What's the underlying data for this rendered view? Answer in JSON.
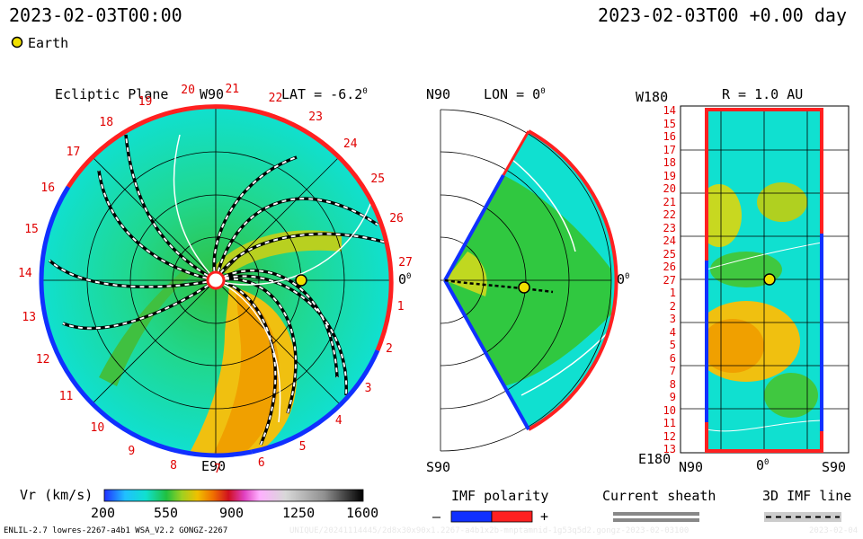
{
  "header": {
    "datetime_left": "2023-02-03T00:00",
    "datetime_right": "2023-02-03T00 +0.00 day",
    "earth_legend": "Earth"
  },
  "colors": {
    "earth": "#f0e000",
    "panel_red": "#ff2020",
    "panel_blue": "#1030ff",
    "label_red": "#e00000",
    "slow_wind": "#00d8e0",
    "fast_wind": "#f0a000"
  },
  "chart_data": [
    {
      "type": "polar",
      "title": "Ecliptic Plane",
      "lat_label": "LAT = -6.2",
      "degree_mark": "0",
      "direction_labels": {
        "top": "W90",
        "bottom": "E90",
        "right": "0"
      },
      "carrington_rotation_labels": [
        "19",
        "20",
        "21",
        "22",
        "23",
        "24",
        "25",
        "26",
        "27",
        "1",
        "2",
        "3",
        "4",
        "5",
        "6",
        "7",
        "8",
        "9",
        "10",
        "11",
        "12",
        "13",
        "14",
        "15",
        "16",
        "17",
        "18"
      ],
      "earth_angle_deg": 0
    },
    {
      "type": "meridional",
      "title": "LON = 0",
      "degree_mark": "0",
      "labels": {
        "top": "N90",
        "bottom": "S90",
        "right": "0"
      }
    },
    {
      "type": "heatmap",
      "title": "R = 1.0 AU",
      "y_top_label": "W180",
      "y_bottom_label": "E180",
      "x_labels": [
        "N90",
        "0",
        "S90"
      ],
      "degree_mark": "0",
      "y_tick_labels": [
        "14",
        "15",
        "16",
        "17",
        "18",
        "19",
        "20",
        "21",
        "22",
        "23",
        "24",
        "25",
        "26",
        "27",
        "1",
        "2",
        "3",
        "4",
        "5",
        "6",
        "7",
        "8",
        "9",
        "10",
        "11",
        "12",
        "13"
      ]
    }
  ],
  "colorbar": {
    "label": "Vr (km/s)",
    "ticks": [
      "200",
      "550",
      "900",
      "1250",
      "1600"
    ],
    "min": 200,
    "max": 1600
  },
  "legends": {
    "imf_polarity": {
      "title": "IMF polarity",
      "minus": "–",
      "plus": "+"
    },
    "current_sheath": {
      "title": "Current sheath"
    },
    "imf_line": {
      "title": "3D IMF line"
    }
  },
  "footer": {
    "model_info": "ENLIL-2.7 lowres-2267-a4b1 WSA_V2.2 GONGZ-2267",
    "run_id": "UNIQUE/20241114445/2d8x30x90x1.2267-a4b1x2b-mnptamnid-1g53q5d2.gongz-2023-02-03100",
    "date_stamp": "2023-02-04"
  }
}
